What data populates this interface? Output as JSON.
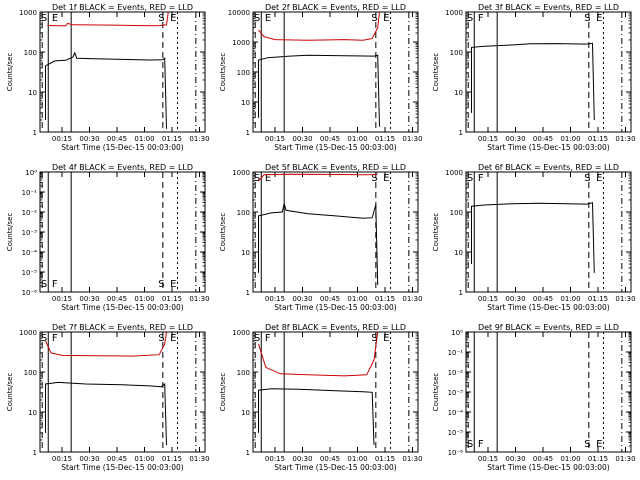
{
  "chart_data": [
    {
      "type": "line",
      "title": "Det 1f BLACK = Events, RED = LLD",
      "xlabel": "Start Time (15-Dec-15 00:03:00)",
      "ylabel": "Counts/sec",
      "yscale": "log",
      "ylim": [
        1,
        1000
      ],
      "yticks": [
        {
          "v": 1,
          "t": "1"
        },
        {
          "v": 10,
          "t": "10"
        },
        {
          "v": 100,
          "t": "100"
        },
        {
          "v": 1000,
          "t": "1000"
        }
      ],
      "xticks": [
        "00:15",
        "00:30",
        "00:45",
        "01:00",
        "01:15",
        "01:30"
      ],
      "event_labels": [
        "S",
        "E",
        "S",
        "E"
      ],
      "series": [
        {
          "color": "#000000",
          "values": [
            [
              3,
              2
            ],
            [
              3,
              45
            ],
            [
              8,
              60
            ],
            [
              14,
              62
            ],
            [
              18,
              75
            ],
            [
              19,
              95
            ],
            [
              20,
              70
            ],
            [
              30,
              68
            ],
            [
              60,
              63
            ],
            [
              67,
              64
            ],
            [
              68,
              70
            ],
            [
              69,
              1.2
            ]
          ]
        },
        {
          "color": "#cc0000",
          "values": [
            [
              4,
              460
            ],
            [
              14,
              450
            ],
            [
              15,
              520
            ],
            [
              18,
              480
            ],
            [
              40,
              470
            ],
            [
              60,
              455
            ],
            [
              66,
              460
            ],
            [
              69,
              480
            ],
            [
              70,
              3000
            ]
          ]
        }
      ]
    },
    {
      "type": "line",
      "title": "Det 2f BLACK = Events, RED = LLD",
      "xlabel": "Start Time (15-Dec-15 00:03:00)",
      "ylabel": "Counts/sec",
      "yscale": "log",
      "ylim": [
        1,
        10000
      ],
      "yticks": [
        {
          "v": 1,
          "t": "1"
        },
        {
          "v": 10,
          "t": "10"
        },
        {
          "v": 100,
          "t": "100"
        },
        {
          "v": 1000,
          "t": "1000"
        },
        {
          "v": 10000,
          "t": "10000"
        }
      ],
      "xticks": [
        "00:15",
        "00:30",
        "00:45",
        "01:00",
        "01:15",
        "01:30"
      ],
      "event_labels": [
        "S",
        "E",
        "S",
        "E"
      ],
      "series": [
        {
          "color": "#000000",
          "values": [
            [
              3,
              3
            ],
            [
              3,
              250
            ],
            [
              8,
              300
            ],
            [
              20,
              340
            ],
            [
              30,
              360
            ],
            [
              50,
              350
            ],
            [
              66,
              340
            ],
            [
              68,
              360
            ],
            [
              69,
              1.5
            ]
          ]
        },
        {
          "color": "#cc0000",
          "values": [
            [
              3,
              2500
            ],
            [
              6,
              1500
            ],
            [
              12,
              1200
            ],
            [
              30,
              1150
            ],
            [
              50,
              1200
            ],
            [
              60,
              1150
            ],
            [
              65,
              1300
            ],
            [
              68,
              3000
            ],
            [
              69,
              12000
            ]
          ]
        }
      ]
    },
    {
      "type": "line",
      "title": "Det 3f BLACK = Events, RED = LLD",
      "xlabel": "Start Time (15-Dec-15 00:03:00)",
      "ylabel": "Counts/sec",
      "yscale": "log",
      "ylim": [
        1,
        1000
      ],
      "yticks": [
        {
          "v": 1,
          "t": "1"
        },
        {
          "v": 10,
          "t": "10"
        },
        {
          "v": 100,
          "t": "100"
        },
        {
          "v": 1000,
          "t": "1000"
        }
      ],
      "xticks": [
        "00:15",
        "00:30",
        "00:45",
        "01:00",
        "01:15",
        "01:30"
      ],
      "event_labels": [
        "S",
        "F",
        "S",
        "E"
      ],
      "series": [
        {
          "color": "#000000",
          "values": [
            [
              3,
              3
            ],
            [
              3,
              130
            ],
            [
              10,
              140
            ],
            [
              25,
              150
            ],
            [
              35,
              160
            ],
            [
              50,
              162
            ],
            [
              66,
              158
            ],
            [
              69,
              165
            ],
            [
              70,
              2
            ]
          ]
        }
      ]
    },
    {
      "type": "line",
      "title": "Det 4f BLACK = Events, RED = LLD",
      "xlabel": "Start Time (15-Dec-15 00:03:00)",
      "ylabel": "Counts/sec",
      "yscale": "log",
      "ylim": [
        1e-06,
        1
      ],
      "yticks": [
        {
          "v": 1e-06,
          "t": "10⁻⁶"
        },
        {
          "v": 1e-05,
          "t": "10⁻⁵"
        },
        {
          "v": 0.0001,
          "t": "10⁻⁴"
        },
        {
          "v": 0.001,
          "t": "10⁻³"
        },
        {
          "v": 0.01,
          "t": "10⁻²"
        },
        {
          "v": 0.1,
          "t": "10⁻¹"
        },
        {
          "v": 1,
          "t": "10⁰"
        }
      ],
      "xticks": [
        "00:15",
        "00:30",
        "00:45",
        "01:00",
        "01:15",
        "01:30"
      ],
      "event_labels": [
        "S",
        "F",
        "S",
        "E"
      ],
      "series": []
    },
    {
      "type": "line",
      "title": "Det 5f BLACK = Events, RED = LLD",
      "xlabel": "Start Time (15-Dec-15 00:03:00)",
      "ylabel": "Counts/sec",
      "yscale": "log",
      "ylim": [
        1,
        1000
      ],
      "yticks": [
        {
          "v": 1,
          "t": "1"
        },
        {
          "v": 10,
          "t": "10"
        },
        {
          "v": 100,
          "t": "100"
        },
        {
          "v": 1000,
          "t": "1000"
        }
      ],
      "xticks": [
        "00:15",
        "00:30",
        "00:45",
        "01:00",
        "01:15",
        "01:30"
      ],
      "event_labels": [
        "S",
        "E",
        "S",
        "E"
      ],
      "series": [
        {
          "color": "#000000",
          "values": [
            [
              3,
              3
            ],
            [
              3,
              80
            ],
            [
              10,
              95
            ],
            [
              16,
              100
            ],
            [
              17,
              160
            ],
            [
              18,
              110
            ],
            [
              30,
              90
            ],
            [
              45,
              80
            ],
            [
              60,
              70
            ],
            [
              65,
              72
            ],
            [
              67,
              150
            ],
            [
              68,
              1.5
            ]
          ]
        },
        {
          "color": "#cc0000",
          "values": [
            [
              3,
              600
            ],
            [
              6,
              850
            ],
            [
              20,
              880
            ],
            [
              40,
              870
            ],
            [
              60,
              850
            ],
            [
              66,
              860
            ],
            [
              68,
              900
            ]
          ]
        }
      ]
    },
    {
      "type": "line",
      "title": "Det 6f BLACK = Events, RED = LLD",
      "xlabel": "Start Time (15-Dec-15 00:03:00)",
      "ylabel": "Counts/sec",
      "yscale": "log",
      "ylim": [
        1,
        1000
      ],
      "yticks": [
        {
          "v": 1,
          "t": "1"
        },
        {
          "v": 10,
          "t": "10"
        },
        {
          "v": 100,
          "t": "100"
        },
        {
          "v": 1000,
          "t": "1000"
        }
      ],
      "xticks": [
        "00:15",
        "00:30",
        "00:45",
        "01:00",
        "01:15",
        "01:30"
      ],
      "event_labels": [
        "S",
        "F",
        "S",
        "E"
      ],
      "series": [
        {
          "color": "#000000",
          "values": [
            [
              3,
              5
            ],
            [
              3,
              140
            ],
            [
              10,
              150
            ],
            [
              25,
              160
            ],
            [
              40,
              165
            ],
            [
              55,
              160
            ],
            [
              66,
              158
            ],
            [
              69,
              170
            ],
            [
              70,
              3
            ]
          ]
        }
      ]
    },
    {
      "type": "line",
      "title": "Det 7f BLACK = Events, RED = LLD",
      "xlabel": "Start Time (15-Dec-15 00:03:00)",
      "ylabel": "Counts/sec",
      "yscale": "log",
      "ylim": [
        1,
        1000
      ],
      "yticks": [
        {
          "v": 1,
          "t": "1"
        },
        {
          "v": 10,
          "t": "10"
        },
        {
          "v": 100,
          "t": "100"
        },
        {
          "v": 1000,
          "t": "1000"
        }
      ],
      "xticks": [
        "00:15",
        "00:30",
        "00:45",
        "01:00",
        "01:15",
        "01:30"
      ],
      "event_labels": [
        "S",
        "F",
        "S",
        "E"
      ],
      "series": [
        {
          "color": "#000000",
          "values": [
            [
              3,
              3
            ],
            [
              3,
              50
            ],
            [
              10,
              55
            ],
            [
              25,
              50
            ],
            [
              45,
              48
            ],
            [
              60,
              45
            ],
            [
              66,
              43
            ],
            [
              68,
              50
            ],
            [
              69,
              1.5
            ]
          ]
        },
        {
          "color": "#cc0000",
          "values": [
            [
              3,
              600
            ],
            [
              6,
              300
            ],
            [
              12,
              260
            ],
            [
              30,
              255
            ],
            [
              50,
              250
            ],
            [
              65,
              270
            ],
            [
              68,
              500
            ],
            [
              69,
              1500
            ]
          ]
        }
      ]
    },
    {
      "type": "line",
      "title": "Det 8f BLACK = Events, RED = LLD",
      "xlabel": "Start Time (15-Dec-15 00:03:00)",
      "ylabel": "Counts/sec",
      "yscale": "log",
      "ylim": [
        1,
        1000
      ],
      "yticks": [
        {
          "v": 1,
          "t": "1"
        },
        {
          "v": 10,
          "t": "10"
        },
        {
          "v": 100,
          "t": "100"
        },
        {
          "v": 1000,
          "t": "1000"
        }
      ],
      "xticks": [
        "00:15",
        "00:30",
        "00:45",
        "01:00",
        "01:15",
        "01:30"
      ],
      "event_labels": [
        "S",
        "F",
        "S",
        "E"
      ],
      "series": [
        {
          "color": "#000000",
          "values": [
            [
              3,
              3
            ],
            [
              3,
              35
            ],
            [
              10,
              38
            ],
            [
              25,
              37
            ],
            [
              45,
              34
            ],
            [
              60,
              32
            ],
            [
              65,
              31
            ],
            [
              66,
              1.5
            ]
          ]
        },
        {
          "color": "#cc0000",
          "values": [
            [
              3,
              500
            ],
            [
              7,
              130
            ],
            [
              15,
              90
            ],
            [
              30,
              85
            ],
            [
              50,
              80
            ],
            [
              62,
              85
            ],
            [
              66,
              200
            ],
            [
              68,
              1200
            ]
          ]
        }
      ]
    },
    {
      "type": "line",
      "title": "Det 9f BLACK = Events, RED = LLD",
      "xlabel": "Start Time (15-Dec-15 00:03:00)",
      "ylabel": "Counts/sec",
      "yscale": "log",
      "ylim": [
        1e-06,
        1
      ],
      "yticks": [
        {
          "v": 1e-06,
          "t": "10⁻⁶"
        },
        {
          "v": 1e-05,
          "t": "10⁻⁵"
        },
        {
          "v": 0.0001,
          "t": "10⁻⁴"
        },
        {
          "v": 0.001,
          "t": "10⁻³"
        },
        {
          "v": 0.01,
          "t": "10⁻²"
        },
        {
          "v": 0.1,
          "t": "10⁻¹"
        },
        {
          "v": 1,
          "t": "10⁰"
        }
      ],
      "xticks": [
        "00:15",
        "00:30",
        "00:45",
        "01:00",
        "01:15",
        "01:30"
      ],
      "event_labels": [
        "S",
        "F",
        "S",
        "E"
      ],
      "series": []
    }
  ]
}
